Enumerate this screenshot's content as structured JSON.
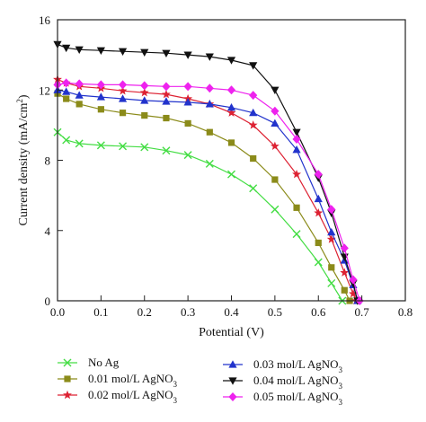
{
  "chart_data": {
    "type": "line",
    "xlabel": "Potential (V)",
    "ylabel_main": "Current density (mA/cm",
    "ylabel_sup": "2",
    "ylabel_tail": ")",
    "xlim": [
      0,
      0.8
    ],
    "ylim": [
      0,
      16
    ],
    "x_ticks": [
      "0.0",
      "0.1",
      "0.2",
      "0.3",
      "0.4",
      "0.5",
      "0.6",
      "0.7",
      "0.8"
    ],
    "y_ticks": [
      "0",
      "4",
      "8",
      "12",
      "16"
    ],
    "grid": false,
    "legend_position": "bottom",
    "series": [
      {
        "name": "No Ag",
        "name_sub": "",
        "color": "#44dd44",
        "marker": "x",
        "points": [
          [
            0,
            9.6
          ],
          [
            0.02,
            9.15
          ],
          [
            0.05,
            8.95
          ],
          [
            0.1,
            8.85
          ],
          [
            0.15,
            8.8
          ],
          [
            0.2,
            8.75
          ],
          [
            0.25,
            8.55
          ],
          [
            0.3,
            8.3
          ],
          [
            0.35,
            7.8
          ],
          [
            0.4,
            7.2
          ],
          [
            0.45,
            6.4
          ],
          [
            0.5,
            5.2
          ],
          [
            0.55,
            3.8
          ],
          [
            0.6,
            2.2
          ],
          [
            0.63,
            1.0
          ],
          [
            0.655,
            0
          ]
        ]
      },
      {
        "name": "0.01 mol/L AgNO",
        "name_sub": "3",
        "color": "#8b8b1a",
        "marker": "square",
        "points": [
          [
            0,
            11.8
          ],
          [
            0.02,
            11.5
          ],
          [
            0.05,
            11.2
          ],
          [
            0.1,
            10.9
          ],
          [
            0.15,
            10.7
          ],
          [
            0.2,
            10.55
          ],
          [
            0.25,
            10.4
          ],
          [
            0.3,
            10.1
          ],
          [
            0.35,
            9.6
          ],
          [
            0.4,
            9.0
          ],
          [
            0.45,
            8.1
          ],
          [
            0.5,
            6.9
          ],
          [
            0.55,
            5.3
          ],
          [
            0.6,
            3.3
          ],
          [
            0.63,
            1.9
          ],
          [
            0.66,
            0.6
          ],
          [
            0.672,
            0
          ]
        ]
      },
      {
        "name": "0.02 mol/L AgNO",
        "name_sub": "3",
        "color": "#dd2233",
        "marker": "star",
        "points": [
          [
            0,
            12.6
          ],
          [
            0.02,
            12.4
          ],
          [
            0.05,
            12.2
          ],
          [
            0.1,
            12.1
          ],
          [
            0.15,
            11.95
          ],
          [
            0.2,
            11.85
          ],
          [
            0.25,
            11.75
          ],
          [
            0.3,
            11.5
          ],
          [
            0.35,
            11.2
          ],
          [
            0.4,
            10.7
          ],
          [
            0.45,
            10.0
          ],
          [
            0.5,
            8.8
          ],
          [
            0.55,
            7.2
          ],
          [
            0.6,
            5.0
          ],
          [
            0.63,
            3.5
          ],
          [
            0.66,
            1.6
          ],
          [
            0.68,
            0.4
          ],
          [
            0.687,
            0
          ]
        ]
      },
      {
        "name": "0.03 mol/L AgNO",
        "name_sub": "3",
        "color": "#2233cc",
        "marker": "triangle-up",
        "points": [
          [
            0,
            12.0
          ],
          [
            0.02,
            11.9
          ],
          [
            0.05,
            11.7
          ],
          [
            0.1,
            11.6
          ],
          [
            0.15,
            11.5
          ],
          [
            0.2,
            11.4
          ],
          [
            0.25,
            11.35
          ],
          [
            0.3,
            11.3
          ],
          [
            0.35,
            11.2
          ],
          [
            0.4,
            11.0
          ],
          [
            0.45,
            10.7
          ],
          [
            0.5,
            10.1
          ],
          [
            0.55,
            8.6
          ],
          [
            0.6,
            5.8
          ],
          [
            0.63,
            3.9
          ],
          [
            0.66,
            2.3
          ],
          [
            0.68,
            0.9
          ],
          [
            0.69,
            0
          ]
        ]
      },
      {
        "name": "0.04 mol/L AgNO",
        "name_sub": "3",
        "color": "#111111",
        "marker": "triangle-down",
        "points": [
          [
            0,
            14.6
          ],
          [
            0.02,
            14.4
          ],
          [
            0.05,
            14.3
          ],
          [
            0.1,
            14.25
          ],
          [
            0.15,
            14.2
          ],
          [
            0.2,
            14.15
          ],
          [
            0.25,
            14.1
          ],
          [
            0.3,
            14.0
          ],
          [
            0.35,
            13.9
          ],
          [
            0.4,
            13.7
          ],
          [
            0.45,
            13.4
          ],
          [
            0.5,
            12.0
          ],
          [
            0.55,
            9.6
          ],
          [
            0.6,
            7.0
          ],
          [
            0.63,
            5.0
          ],
          [
            0.66,
            2.5
          ],
          [
            0.68,
            1.0
          ],
          [
            0.69,
            0
          ]
        ]
      },
      {
        "name": "0.05 mol/L AgNO",
        "name_sub": "3",
        "color": "#ee22ee",
        "marker": "diamond",
        "points": [
          [
            0,
            12.3
          ],
          [
            0.02,
            12.4
          ],
          [
            0.05,
            12.35
          ],
          [
            0.1,
            12.3
          ],
          [
            0.15,
            12.3
          ],
          [
            0.2,
            12.25
          ],
          [
            0.25,
            12.2
          ],
          [
            0.3,
            12.2
          ],
          [
            0.35,
            12.1
          ],
          [
            0.4,
            12.0
          ],
          [
            0.45,
            11.7
          ],
          [
            0.5,
            10.8
          ],
          [
            0.55,
            9.2
          ],
          [
            0.6,
            7.2
          ],
          [
            0.63,
            5.2
          ],
          [
            0.66,
            3.0
          ],
          [
            0.68,
            1.2
          ],
          [
            0.695,
            0
          ]
        ]
      }
    ]
  }
}
